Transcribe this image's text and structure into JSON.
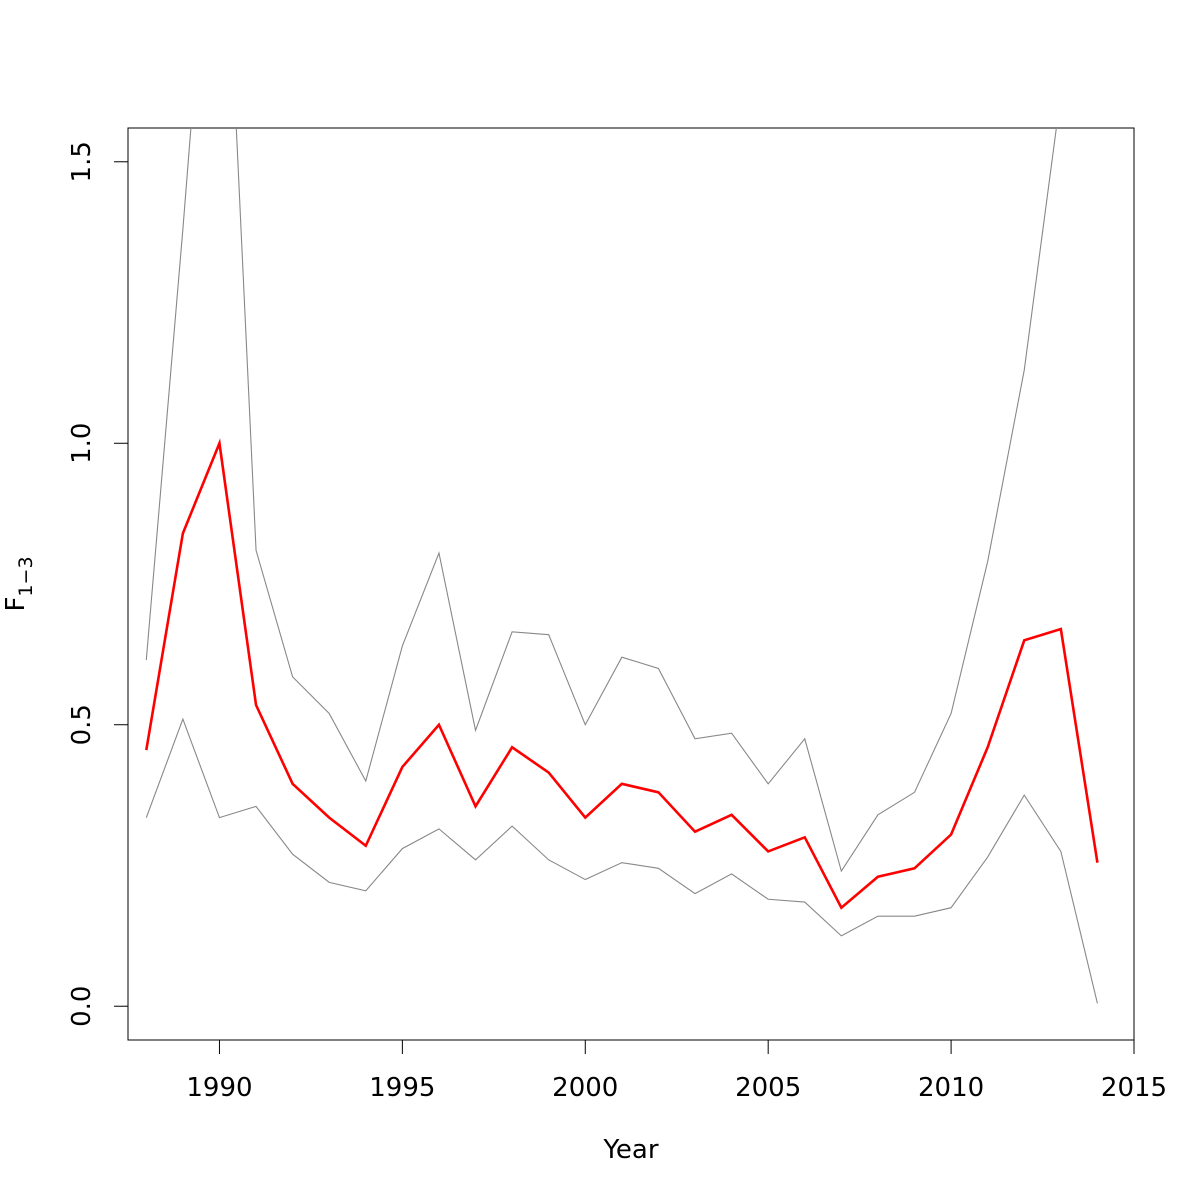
{
  "chart_data": {
    "type": "line",
    "xlabel": "Year",
    "ylabel": {
      "main": "F",
      "sub": "1−3"
    },
    "xlim": [
      1987.5,
      2015
    ],
    "ylim": [
      -0.06,
      1.56
    ],
    "x_ticks": [
      1990,
      1995,
      2000,
      2005,
      2010,
      2015
    ],
    "y_ticks": [
      0.0,
      0.5,
      1.0,
      1.5
    ],
    "x_tick_labels": [
      "1990",
      "1995",
      "2000",
      "2005",
      "2010",
      "2015"
    ],
    "y_tick_labels": [
      "0.0",
      "0.5",
      "1.0",
      "1.5"
    ],
    "grid": false,
    "x": [
      1988,
      1989,
      1990,
      1991,
      1992,
      1993,
      1994,
      1995,
      1996,
      1997,
      1998,
      1999,
      2000,
      2001,
      2002,
      2003,
      2004,
      2005,
      2006,
      2007,
      2008,
      2009,
      2010,
      2011,
      2012,
      2013,
      2014
    ],
    "series": [
      {
        "role": "estimate",
        "color": "#ff0000",
        "values": [
          0.455,
          0.84,
          1.0,
          0.535,
          0.395,
          0.335,
          0.285,
          0.425,
          0.5,
          0.355,
          0.46,
          0.415,
          0.335,
          0.395,
          0.38,
          0.31,
          0.34,
          0.275,
          0.3,
          0.175,
          0.23,
          0.245,
          0.305,
          0.46,
          0.65,
          0.67,
          0.255
        ]
      },
      {
        "role": "upper",
        "color": "#888888",
        "values": [
          0.615,
          1.38,
          2.2,
          0.81,
          0.585,
          0.52,
          0.4,
          0.64,
          0.805,
          0.49,
          0.665,
          0.66,
          0.5,
          0.62,
          0.6,
          0.475,
          0.485,
          0.395,
          0.475,
          0.24,
          0.34,
          0.38,
          0.52,
          0.79,
          1.13,
          1.62,
          null
        ]
      },
      {
        "role": "lower",
        "color": "#888888",
        "values": [
          0.335,
          0.51,
          0.335,
          0.355,
          0.27,
          0.22,
          0.205,
          0.28,
          0.315,
          0.26,
          0.32,
          0.26,
          0.225,
          0.255,
          0.245,
          0.2,
          0.235,
          0.19,
          0.185,
          0.125,
          0.16,
          0.16,
          0.175,
          0.265,
          0.375,
          0.275,
          0.005
        ]
      }
    ]
  }
}
